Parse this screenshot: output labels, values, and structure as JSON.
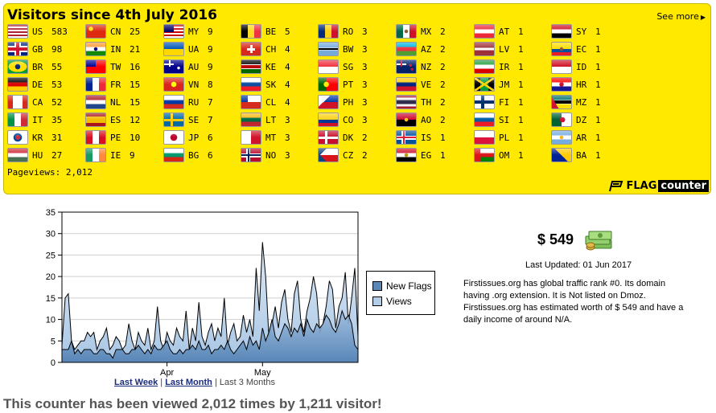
{
  "header": {
    "title": "Visitors since 4th July 2016",
    "see_more": "See more",
    "pageviews": "Pageviews: 2,012",
    "brand_flag": "FLAG",
    "brand_counter": "counter"
  },
  "flags": [
    [
      {
        "code": "US",
        "count": "583",
        "flag": "us"
      },
      {
        "code": "GB",
        "count": "98",
        "flag": "gb"
      },
      {
        "code": "BR",
        "count": "55",
        "flag": "br"
      },
      {
        "code": "DE",
        "count": "53",
        "flag": "de"
      },
      {
        "code": "CA",
        "count": "52",
        "flag": "ca"
      },
      {
        "code": "IT",
        "count": "35",
        "flag": "it"
      },
      {
        "code": "KR",
        "count": "31",
        "flag": "kr"
      },
      {
        "code": "HU",
        "count": "27",
        "flag": "hu"
      }
    ],
    [
      {
        "code": "CN",
        "count": "25",
        "flag": "cn"
      },
      {
        "code": "IN",
        "count": "21",
        "flag": "in"
      },
      {
        "code": "TW",
        "count": "16",
        "flag": "tw"
      },
      {
        "code": "FR",
        "count": "15",
        "flag": "fr"
      },
      {
        "code": "NL",
        "count": "15",
        "flag": "nl"
      },
      {
        "code": "ES",
        "count": "12",
        "flag": "es"
      },
      {
        "code": "PE",
        "count": "10",
        "flag": "pe"
      },
      {
        "code": "IE",
        "count": "9",
        "flag": "ie"
      }
    ],
    [
      {
        "code": "MY",
        "count": "9",
        "flag": "my"
      },
      {
        "code": "UA",
        "count": "9",
        "flag": "ua"
      },
      {
        "code": "AU",
        "count": "9",
        "flag": "au"
      },
      {
        "code": "VN",
        "count": "8",
        "flag": "vn"
      },
      {
        "code": "RU",
        "count": "7",
        "flag": "ru"
      },
      {
        "code": "SE",
        "count": "7",
        "flag": "se"
      },
      {
        "code": "JP",
        "count": "6",
        "flag": "jp"
      },
      {
        "code": "BG",
        "count": "6",
        "flag": "bg"
      }
    ],
    [
      {
        "code": "BE",
        "count": "5",
        "flag": "be"
      },
      {
        "code": "CH",
        "count": "4",
        "flag": "ch"
      },
      {
        "code": "KE",
        "count": "4",
        "flag": "ke"
      },
      {
        "code": "SK",
        "count": "4",
        "flag": "sk"
      },
      {
        "code": "CL",
        "count": "4",
        "flag": "cl"
      },
      {
        "code": "LT",
        "count": "3",
        "flag": "lt"
      },
      {
        "code": "MT",
        "count": "3",
        "flag": "mt"
      },
      {
        "code": "NO",
        "count": "3",
        "flag": "no"
      }
    ],
    [
      {
        "code": "RO",
        "count": "3",
        "flag": "ro"
      },
      {
        "code": "BW",
        "count": "3",
        "flag": "bw"
      },
      {
        "code": "SG",
        "count": "3",
        "flag": "sg"
      },
      {
        "code": "PT",
        "count": "3",
        "flag": "pt"
      },
      {
        "code": "PH",
        "count": "3",
        "flag": "ph"
      },
      {
        "code": "CO",
        "count": "3",
        "flag": "co"
      },
      {
        "code": "DK",
        "count": "2",
        "flag": "dk"
      },
      {
        "code": "CZ",
        "count": "2",
        "flag": "cz"
      }
    ],
    [
      {
        "code": "MX",
        "count": "2",
        "flag": "mx"
      },
      {
        "code": "AZ",
        "count": "2",
        "flag": "az"
      },
      {
        "code": "NZ",
        "count": "2",
        "flag": "nz"
      },
      {
        "code": "VE",
        "count": "2",
        "flag": "ve"
      },
      {
        "code": "TH",
        "count": "2",
        "flag": "th"
      },
      {
        "code": "AO",
        "count": "2",
        "flag": "ao"
      },
      {
        "code": "IS",
        "count": "1",
        "flag": "is"
      },
      {
        "code": "EG",
        "count": "1",
        "flag": "eg"
      }
    ],
    [
      {
        "code": "AT",
        "count": "1",
        "flag": "at"
      },
      {
        "code": "LV",
        "count": "1",
        "flag": "lv"
      },
      {
        "code": "IR",
        "count": "1",
        "flag": "ir"
      },
      {
        "code": "JM",
        "count": "1",
        "flag": "jm"
      },
      {
        "code": "FI",
        "count": "1",
        "flag": "fi"
      },
      {
        "code": "SI",
        "count": "1",
        "flag": "si"
      },
      {
        "code": "PL",
        "count": "1",
        "flag": "pl"
      },
      {
        "code": "OM",
        "count": "1",
        "flag": "om"
      }
    ],
    [
      {
        "code": "SY",
        "count": "1",
        "flag": "sy"
      },
      {
        "code": "EC",
        "count": "1",
        "flag": "ec"
      },
      {
        "code": "ID",
        "count": "1",
        "flag": "id"
      },
      {
        "code": "HR",
        "count": "1",
        "flag": "hr"
      },
      {
        "code": "MZ",
        "count": "1",
        "flag": "mz"
      },
      {
        "code": "DZ",
        "count": "1",
        "flag": "dz"
      },
      {
        "code": "AR",
        "count": "1",
        "flag": "ar"
      },
      {
        "code": "BA",
        "count": "1",
        "flag": "ba"
      }
    ]
  ],
  "chart_data": {
    "type": "area",
    "ylim": [
      0,
      35
    ],
    "yticks": [
      0,
      5,
      10,
      15,
      20,
      25,
      30,
      35
    ],
    "xticks": [
      {
        "label": "Apr",
        "index": 33
      },
      {
        "label": "May",
        "index": 63
      }
    ],
    "grid": true,
    "legend_position": "right",
    "series": [
      {
        "name": "New Flags",
        "color": "#5b87b8",
        "values": [
          3,
          3,
          3,
          5,
          2,
          3,
          2,
          3,
          3,
          3,
          2,
          2,
          3,
          3,
          2,
          2,
          1,
          3,
          3,
          3,
          2,
          2,
          3,
          3,
          4,
          3,
          2,
          3,
          2,
          4,
          3,
          3,
          4,
          5,
          3,
          2,
          2,
          3,
          2,
          3,
          3,
          4,
          3,
          5,
          3,
          3,
          4,
          2,
          3,
          3,
          4,
          3,
          5,
          3,
          2,
          3,
          4,
          5,
          3,
          6,
          4,
          5,
          3,
          8,
          5,
          7,
          10,
          6,
          5,
          7,
          9,
          8,
          6,
          8,
          7,
          9,
          6,
          10,
          8,
          7,
          9,
          8,
          9,
          11,
          10,
          8,
          7,
          9,
          12,
          10,
          11,
          9,
          4,
          3
        ]
      },
      {
        "name": "Views",
        "color": "#b3cde8",
        "values": [
          4,
          15,
          16,
          5,
          3,
          4,
          5,
          5,
          7,
          6,
          7,
          3,
          5,
          6,
          8,
          3,
          4,
          6,
          5,
          3,
          4,
          9,
          5,
          3,
          7,
          5,
          4,
          8,
          3,
          5,
          13,
          5,
          3,
          7,
          5,
          4,
          8,
          6,
          5,
          12,
          3,
          8,
          5,
          14,
          6,
          4,
          7,
          9,
          5,
          8,
          6,
          15,
          4,
          7,
          9,
          5,
          6,
          11,
          7,
          10,
          6,
          22,
          12,
          28,
          20,
          6,
          9,
          13,
          8,
          14,
          17,
          10,
          7,
          16,
          19,
          10,
          7,
          12,
          15,
          20,
          16,
          7,
          9,
          13,
          19,
          17,
          8,
          13,
          15,
          21,
          9,
          15,
          22,
          6
        ]
      }
    ]
  },
  "range_links": {
    "week": "Last Week",
    "month": "Last Month",
    "sep": "|",
    "three": "Last 3 Months"
  },
  "footer": "This counter has been viewed 2,012 times by 1,211 visitor!",
  "side": {
    "worth": "$ 549",
    "updated": "Last Updated: 01 Jun 2017",
    "description": "Firstissues.org has global traffic rank #0. Its domain having .org extension. It is Not listed on Dmoz. Firstissues.org has estimated worth of $ 549 and have a daily income of around N/A."
  }
}
